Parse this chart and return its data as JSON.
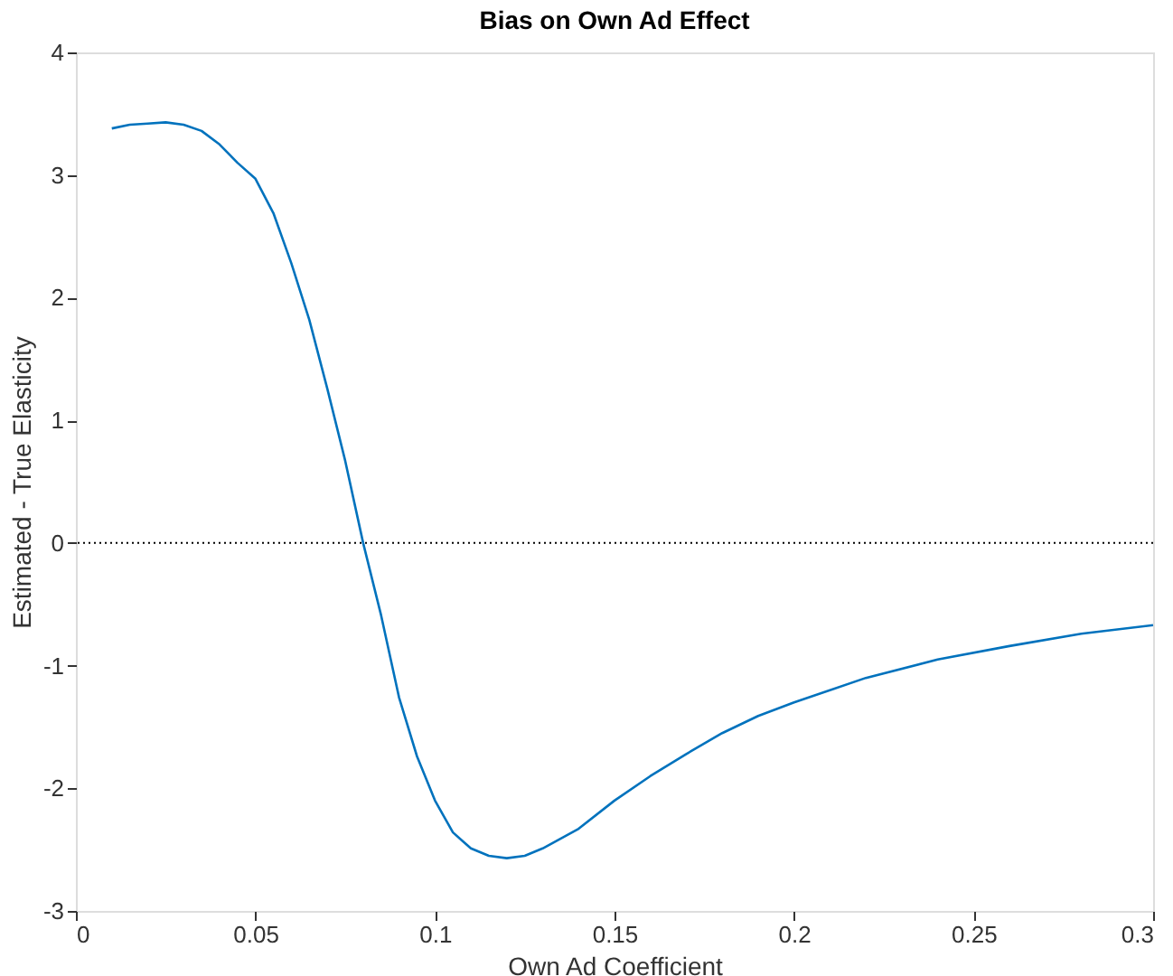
{
  "chart_data": {
    "type": "line",
    "title": "Bias on Own Ad Effect",
    "xlabel": "Own Ad Coefficient",
    "ylabel": "Estimated - True Elasticity",
    "series": [
      {
        "color": "#0072bd",
        "x": [
          0.01,
          0.015,
          0.02,
          0.025,
          0.03,
          0.035,
          0.04,
          0.045,
          0.05,
          0.055,
          0.06,
          0.065,
          0.07,
          0.075,
          0.08,
          0.085,
          0.09,
          0.095,
          0.1,
          0.105,
          0.11,
          0.115,
          0.12,
          0.125,
          0.13,
          0.14,
          0.15,
          0.16,
          0.17,
          0.18,
          0.19,
          0.2,
          0.22,
          0.24,
          0.26,
          0.28,
          0.3
        ],
        "values": [
          3.38,
          3.41,
          3.42,
          3.43,
          3.41,
          3.36,
          3.25,
          3.1,
          2.97,
          2.69,
          2.28,
          1.82,
          1.26,
          0.67,
          0.0,
          -0.59,
          -1.26,
          -1.74,
          -2.1,
          -2.36,
          -2.49,
          -2.55,
          -2.57,
          -2.55,
          -2.49,
          -2.33,
          -2.1,
          -1.9,
          -1.72,
          -1.55,
          -1.41,
          -1.3,
          -1.1,
          -0.95,
          -0.84,
          -0.74,
          -0.67
        ]
      }
    ],
    "xlim": [
      0,
      0.3
    ],
    "xticks": [
      0,
      0.05,
      0.1,
      0.15,
      0.2,
      0.25,
      0.3
    ],
    "ylim": [
      -3,
      4
    ],
    "yticks": [
      -3,
      -2,
      -1,
      0,
      1,
      2,
      3,
      4
    ],
    "ref_lines": [
      {
        "axis": "y",
        "value": 0,
        "color": "#000000",
        "line_style": "dotted"
      }
    ],
    "grid": false,
    "line_style": "solid",
    "marker": "none"
  }
}
